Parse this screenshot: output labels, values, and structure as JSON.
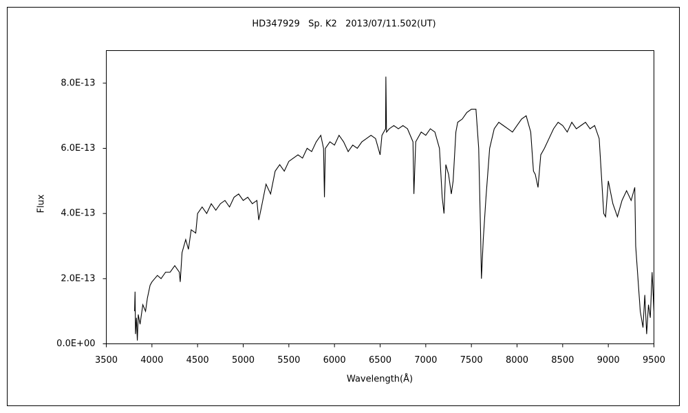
{
  "chart_data": {
    "type": "line",
    "title": "HD347929   Sp. K2   2013/07/11.502(UT)",
    "x_label": "Wavelength(Å)",
    "y_label": "Flux",
    "xlim": [
      3500,
      9500
    ],
    "xticks": [
      3500,
      4000,
      4500,
      5000,
      5500,
      6000,
      6500,
      7000,
      7500,
      8000,
      8500,
      9000,
      9500
    ],
    "ylim": [
      0,
      9e-13
    ],
    "yticks": [
      {
        "value": 0,
        "label": "0.0E+00"
      },
      {
        "value": 2e-13,
        "label": "2.0E-13"
      },
      {
        "value": 4e-13,
        "label": "4.0E-13"
      },
      {
        "value": 6e-13,
        "label": "6.0E-13"
      },
      {
        "value": 8e-13,
        "label": "8.0E-13"
      }
    ],
    "grid": false,
    "series": [
      {
        "color": "#000000",
        "x": [
          3810,
          3815,
          3820,
          3830,
          3840,
          3850,
          3870,
          3900,
          3930,
          3950,
          3980,
          4000,
          4030,
          4060,
          4100,
          4150,
          4200,
          4250,
          4300,
          4310,
          4330,
          4370,
          4400,
          4430,
          4480,
          4500,
          4550,
          4600,
          4650,
          4700,
          4750,
          4800,
          4850,
          4900,
          4950,
          5000,
          5050,
          5100,
          5150,
          5170,
          5200,
          5250,
          5300,
          5350,
          5400,
          5450,
          5500,
          5550,
          5600,
          5650,
          5700,
          5750,
          5800,
          5850,
          5880,
          5890,
          5900,
          5950,
          6000,
          6050,
          6100,
          6150,
          6200,
          6250,
          6300,
          6350,
          6400,
          6450,
          6500,
          6520,
          6560,
          6563,
          6570,
          6600,
          6650,
          6700,
          6750,
          6800,
          6860,
          6870,
          6890,
          6950,
          7000,
          7050,
          7100,
          7150,
          7180,
          7200,
          7220,
          7250,
          7280,
          7300,
          7330,
          7350,
          7400,
          7450,
          7500,
          7550,
          7580,
          7600,
          7610,
          7630,
          7660,
          7700,
          7750,
          7800,
          7850,
          7900,
          7950,
          8000,
          8050,
          8100,
          8150,
          8180,
          8200,
          8230,
          8260,
          8300,
          8350,
          8400,
          8450,
          8500,
          8550,
          8600,
          8650,
          8700,
          8750,
          8800,
          8850,
          8900,
          8950,
          8970,
          9000,
          9050,
          9100,
          9150,
          9200,
          9250,
          9290,
          9300,
          9320,
          9350,
          9380,
          9400,
          9420,
          9440,
          9460,
          9480,
          9500
        ],
        "values": [
          1e-13,
          1.6e-13,
          3e-14,
          8e-14,
          1e-14,
          9e-14,
          6e-14,
          1.2e-13,
          1e-13,
          1.4e-13,
          1.8e-13,
          1.9e-13,
          2e-13,
          2.1e-13,
          2e-13,
          2.2e-13,
          2.2e-13,
          2.4e-13,
          2.2e-13,
          1.9e-13,
          2.8e-13,
          3.2e-13,
          2.9e-13,
          3.5e-13,
          3.4e-13,
          4e-13,
          4.2e-13,
          4e-13,
          4.3e-13,
          4.1e-13,
          4.3e-13,
          4.4e-13,
          4.2e-13,
          4.5e-13,
          4.6e-13,
          4.4e-13,
          4.5e-13,
          4.3e-13,
          4.4e-13,
          3.8e-13,
          4.2e-13,
          4.9e-13,
          4.6e-13,
          5.3e-13,
          5.5e-13,
          5.3e-13,
          5.6e-13,
          5.7e-13,
          5.8e-13,
          5.7e-13,
          6e-13,
          5.9e-13,
          6.2e-13,
          6.4e-13,
          6e-13,
          4.5e-13,
          6e-13,
          6.2e-13,
          6.1e-13,
          6.4e-13,
          6.2e-13,
          5.9e-13,
          6.1e-13,
          6e-13,
          6.2e-13,
          6.3e-13,
          6.4e-13,
          6.3e-13,
          5.8e-13,
          6.4e-13,
          6.6e-13,
          8.2e-13,
          6.5e-13,
          6.6e-13,
          6.7e-13,
          6.6e-13,
          6.7e-13,
          6.6e-13,
          6.2e-13,
          4.6e-13,
          6.2e-13,
          6.5e-13,
          6.4e-13,
          6.6e-13,
          6.5e-13,
          6e-13,
          4.5e-13,
          4e-13,
          5.5e-13,
          5.2e-13,
          4.6e-13,
          5e-13,
          6.5e-13,
          6.8e-13,
          6.9e-13,
          7.1e-13,
          7.2e-13,
          7.2e-13,
          6e-13,
          3.5e-13,
          2e-13,
          3.2e-13,
          4.5e-13,
          6e-13,
          6.6e-13,
          6.8e-13,
          6.7e-13,
          6.6e-13,
          6.5e-13,
          6.7e-13,
          6.9e-13,
          7e-13,
          6.5e-13,
          5.3e-13,
          5.2e-13,
          4.8e-13,
          5.8e-13,
          6e-13,
          6.3e-13,
          6.6e-13,
          6.8e-13,
          6.7e-13,
          6.5e-13,
          6.8e-13,
          6.6e-13,
          6.7e-13,
          6.8e-13,
          6.6e-13,
          6.7e-13,
          6.3e-13,
          4e-13,
          3.9e-13,
          5e-13,
          4.3e-13,
          3.9e-13,
          4.4e-13,
          4.7e-13,
          4.4e-13,
          4.8e-13,
          3e-13,
          2.2e-13,
          1e-13,
          5e-14,
          1.5e-13,
          3e-14,
          1.2e-13,
          8e-14,
          2.2e-13,
          1e-13
        ]
      }
    ]
  }
}
